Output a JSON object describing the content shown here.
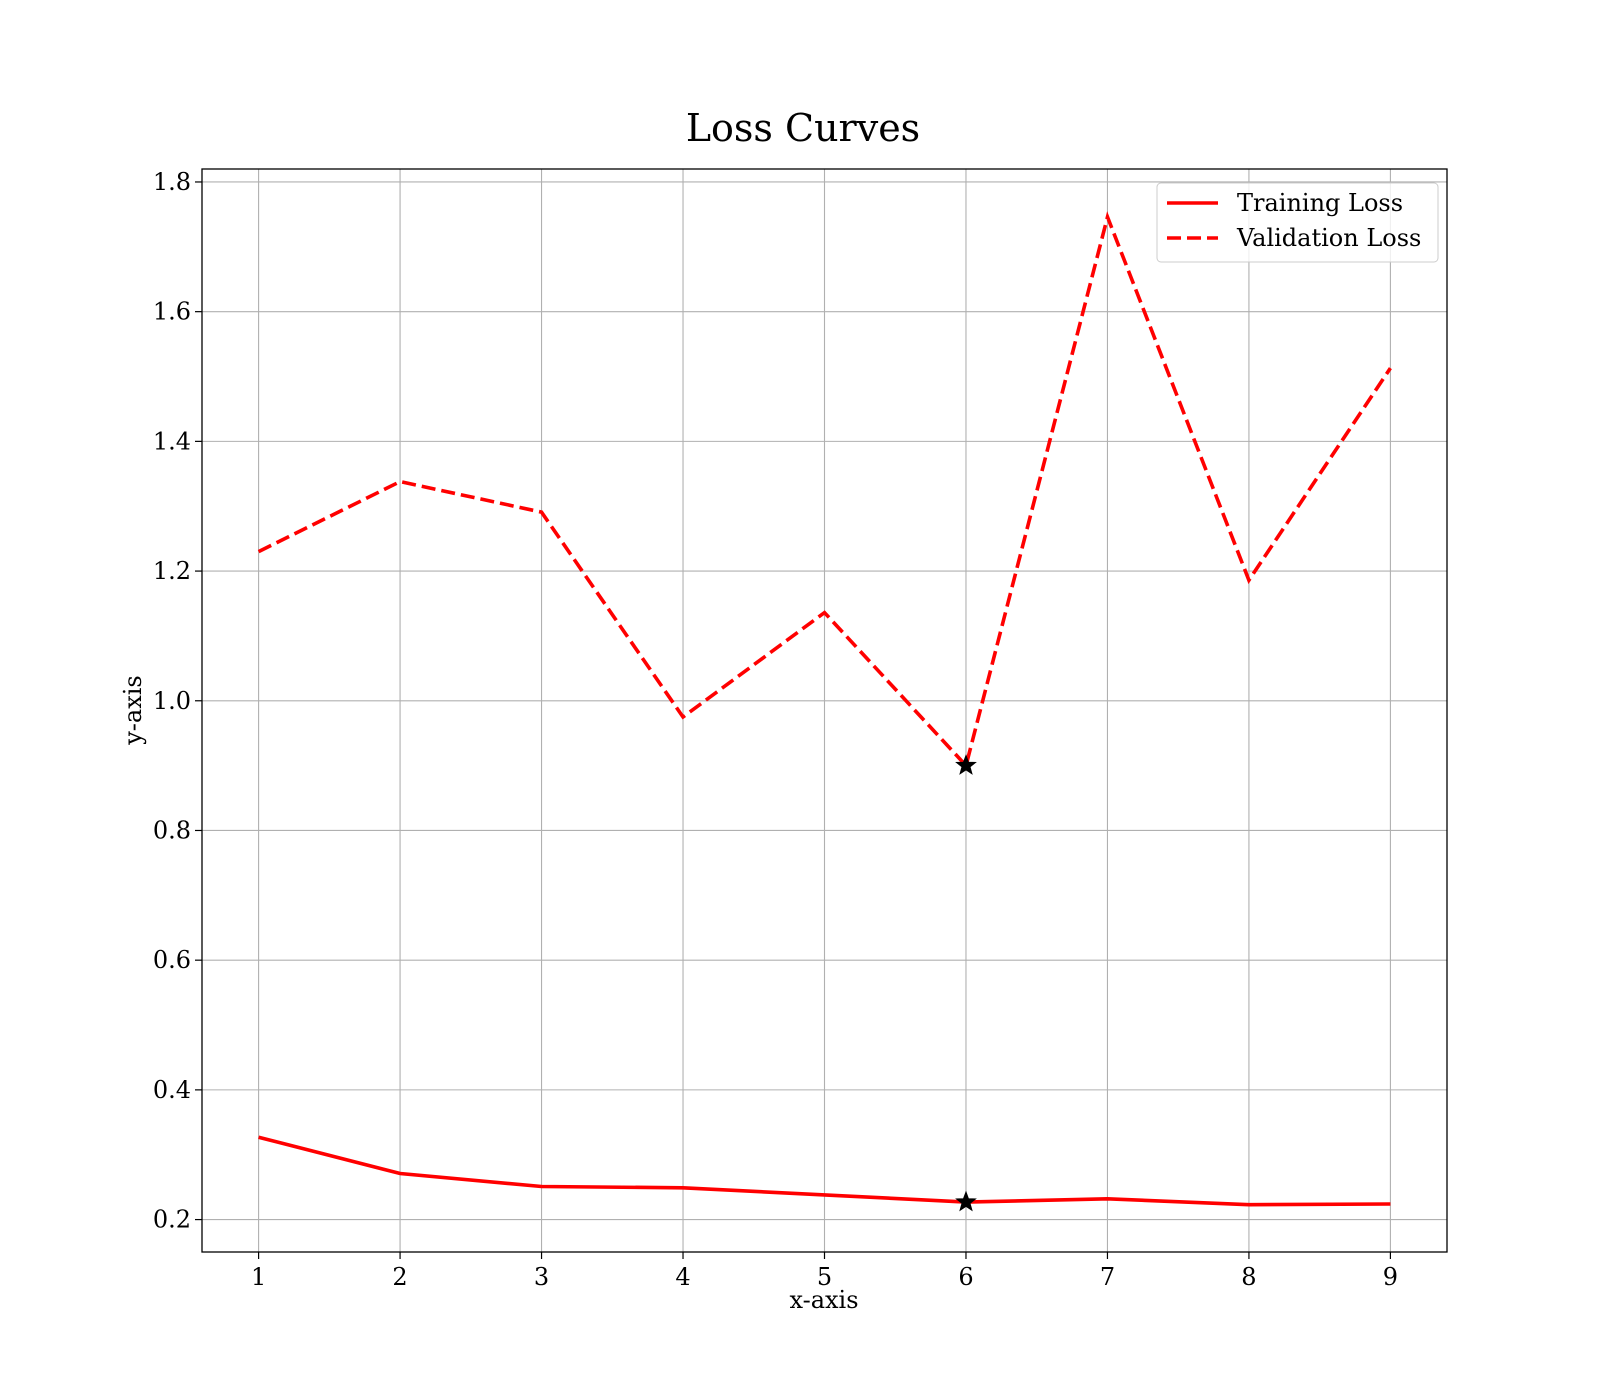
{
  "chart_data": {
    "type": "line",
    "title": "Loss Curves",
    "xlabel": "x-axis",
    "ylabel": "y-axis",
    "x": [
      1,
      2,
      3,
      4,
      5,
      6,
      7,
      8,
      9
    ],
    "xlim": [
      0.6,
      9.4
    ],
    "ylim": [
      0.15,
      1.82
    ],
    "x_ticks": [
      1,
      2,
      3,
      4,
      5,
      6,
      7,
      8,
      9
    ],
    "y_ticks": [
      0.2,
      0.4,
      0.6,
      0.8,
      1.0,
      1.2,
      1.4,
      1.6,
      1.8
    ],
    "y_tick_labels": [
      "0.2",
      "0.4",
      "0.6",
      "0.8",
      "1.0",
      "1.2",
      "1.4",
      "1.6",
      "1.8"
    ],
    "grid": true,
    "legend_position": "top-right",
    "series": [
      {
        "name": "Training Loss",
        "values": [
          0.327,
          0.271,
          0.251,
          0.249,
          0.238,
          0.227,
          0.232,
          0.223,
          0.224
        ],
        "color": "#ff0000",
        "style": "solid"
      },
      {
        "name": "Validation Loss",
        "values": [
          1.23,
          1.338,
          1.291,
          0.975,
          1.136,
          0.9,
          1.746,
          1.186,
          1.513
        ],
        "color": "#ff0000",
        "style": "dashed"
      }
    ],
    "markers": [
      {
        "series": "Training Loss",
        "x": 6,
        "y": 0.227,
        "shape": "star",
        "color": "#000000"
      },
      {
        "series": "Validation Loss",
        "x": 6,
        "y": 0.9,
        "shape": "star",
        "color": "#000000"
      }
    ]
  }
}
